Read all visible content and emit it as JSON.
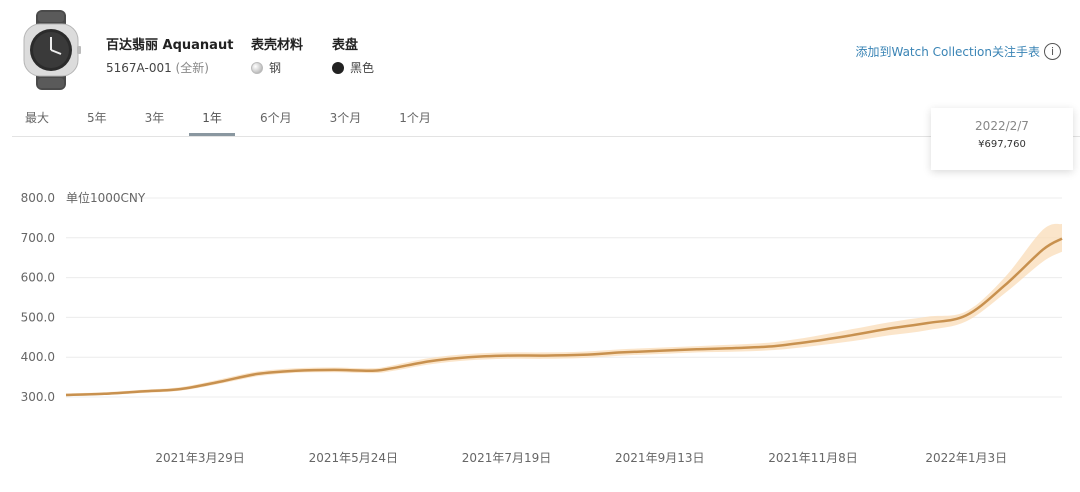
{
  "watch": {
    "brand_model": "百达翡丽 Aquanaut",
    "reference": "5167A-001",
    "condition": "(全新)",
    "case_material_label": "表壳材料",
    "case_material_value": "钢",
    "dial_label": "表盘",
    "dial_value": "黑色"
  },
  "add_collection_link": "添加到Watch Collection关注手表",
  "info_icon": "i",
  "tabs": [
    {
      "label": "最大",
      "active": false
    },
    {
      "label": "5年",
      "active": false
    },
    {
      "label": "3年",
      "active": false
    },
    {
      "label": "1年",
      "active": true
    },
    {
      "label": "6个月",
      "active": false
    },
    {
      "label": "3个月",
      "active": false
    },
    {
      "label": "1个月",
      "active": false
    }
  ],
  "tooltip": {
    "date": "2022/2/7",
    "value": "¥697,760"
  },
  "colors": {
    "line": "#c8914f",
    "band": "#f9dcb8",
    "grid": "#ececec",
    "link": "#3a84b5"
  },
  "chart_data": {
    "type": "line",
    "unit_label": "单位1000CNY",
    "ylim": [
      300,
      800
    ],
    "yticks": [
      "800.0",
      "700.0",
      "600.0",
      "500.0",
      "400.0",
      "300.0"
    ],
    "x_start": "2021-02-08",
    "x_end": "2022-02-07",
    "xticks": [
      {
        "date": "2021-03-29",
        "label": "2021年3月29日"
      },
      {
        "date": "2021-05-24",
        "label": "2021年5月24日"
      },
      {
        "date": "2021-07-19",
        "label": "2021年7月19日"
      },
      {
        "date": "2021-09-13",
        "label": "2021年9月13日"
      },
      {
        "date": "2021-11-08",
        "label": "2021年11月8日"
      },
      {
        "date": "2022-01-03",
        "label": "2022年1月3日"
      }
    ],
    "grid": true,
    "series": [
      {
        "points": [
          [
            "2021-02-08",
            305
          ],
          [
            "2021-02-22",
            308
          ],
          [
            "2021-03-08",
            314
          ],
          [
            "2021-03-22",
            320
          ],
          [
            "2021-04-05",
            338
          ],
          [
            "2021-04-19",
            358
          ],
          [
            "2021-05-03",
            366
          ],
          [
            "2021-05-17",
            368
          ],
          [
            "2021-05-31",
            366
          ],
          [
            "2021-06-07",
            372
          ],
          [
            "2021-06-21",
            390
          ],
          [
            "2021-07-05",
            400
          ],
          [
            "2021-07-19",
            404
          ],
          [
            "2021-08-02",
            404
          ],
          [
            "2021-08-16",
            406
          ],
          [
            "2021-08-30",
            412
          ],
          [
            "2021-09-13",
            416
          ],
          [
            "2021-09-27",
            420
          ],
          [
            "2021-10-11",
            423
          ],
          [
            "2021-10-25",
            428
          ],
          [
            "2021-11-08",
            440
          ],
          [
            "2021-11-22",
            455
          ],
          [
            "2021-12-06",
            472
          ],
          [
            "2021-12-20",
            486
          ],
          [
            "2022-01-03",
            505
          ],
          [
            "2022-01-17",
            580
          ],
          [
            "2022-01-31",
            670
          ],
          [
            "2022-02-07",
            698
          ]
        ],
        "band": [
          [
            302,
            309
          ],
          [
            305,
            312
          ],
          [
            310,
            318
          ],
          [
            316,
            325
          ],
          [
            333,
            344
          ],
          [
            352,
            364
          ],
          [
            361,
            372
          ],
          [
            362,
            374
          ],
          [
            360,
            372
          ],
          [
            365,
            379
          ],
          [
            382,
            398
          ],
          [
            392,
            408
          ],
          [
            396,
            412
          ],
          [
            396,
            412
          ],
          [
            398,
            414
          ],
          [
            404,
            420
          ],
          [
            408,
            424
          ],
          [
            412,
            428
          ],
          [
            414,
            432
          ],
          [
            418,
            438
          ],
          [
            428,
            452
          ],
          [
            440,
            470
          ],
          [
            455,
            488
          ],
          [
            468,
            502
          ],
          [
            490,
            515
          ],
          [
            560,
            600
          ],
          [
            640,
            720
          ],
          [
            665,
            735
          ]
        ]
      }
    ]
  }
}
